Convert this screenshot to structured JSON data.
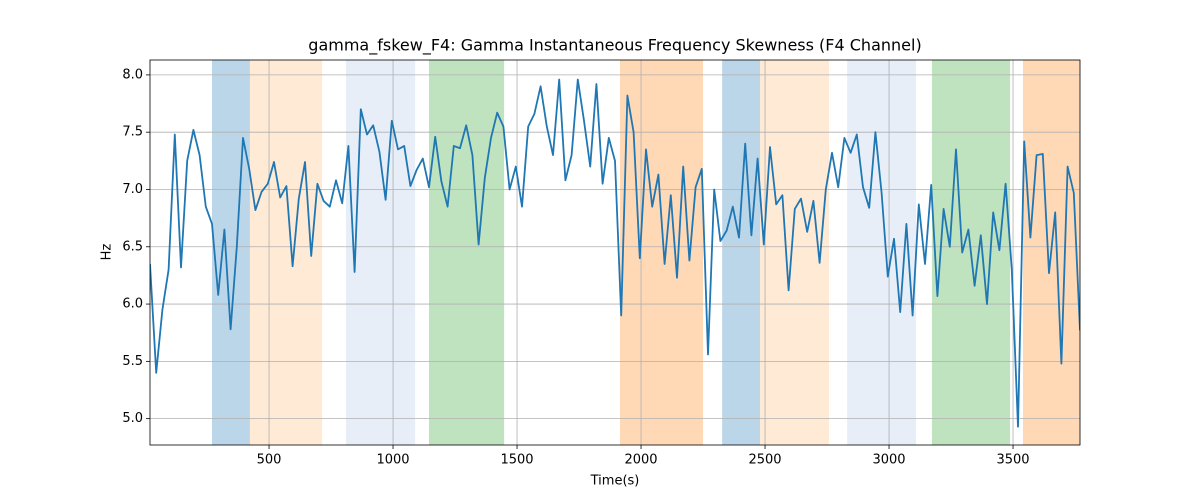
{
  "chart_data": {
    "type": "line",
    "title": "gamma_fskew_F4: Gamma Instantaneous Frequency Skewness (F4 Channel)",
    "x_label": "Time(s)",
    "y_label": "Hz",
    "x": [
      20,
      45,
      70,
      95,
      120,
      145,
      170,
      195,
      220,
      245,
      270,
      295,
      320,
      345,
      370,
      395,
      420,
      445,
      470,
      495,
      520,
      545,
      570,
      595,
      620,
      645,
      670,
      695,
      720,
      745,
      770,
      795,
      820,
      845,
      870,
      895,
      920,
      945,
      970,
      995,
      1020,
      1045,
      1070,
      1095,
      1120,
      1145,
      1170,
      1195,
      1220,
      1245,
      1270,
      1295,
      1320,
      1345,
      1370,
      1395,
      1420,
      1445,
      1470,
      1495,
      1520,
      1545,
      1570,
      1595,
      1620,
      1645,
      1670,
      1695,
      1720,
      1745,
      1770,
      1795,
      1820,
      1845,
      1870,
      1895,
      1920,
      1945,
      1970,
      1995,
      2020,
      2045,
      2070,
      2095,
      2120,
      2145,
      2170,
      2195,
      2220,
      2245,
      2270,
      2295,
      2320,
      2345,
      2370,
      2395,
      2420,
      2445,
      2470,
      2495,
      2520,
      2545,
      2570,
      2595,
      2620,
      2645,
      2670,
      2695,
      2720,
      2745,
      2770,
      2795,
      2820,
      2845,
      2870,
      2895,
      2920,
      2945,
      2970,
      2995,
      3020,
      3045,
      3070,
      3095,
      3120,
      3145,
      3170,
      3195,
      3220,
      3245,
      3270,
      3295,
      3320,
      3345,
      3370,
      3395,
      3420,
      3445,
      3470,
      3495,
      3520,
      3545,
      3570,
      3595,
      3620,
      3645,
      3670,
      3695,
      3720,
      3745,
      3770
    ],
    "values": [
      6.35,
      5.4,
      5.95,
      6.3,
      7.48,
      6.32,
      7.25,
      7.52,
      7.3,
      6.85,
      6.7,
      6.08,
      6.65,
      5.78,
      6.5,
      7.45,
      7.18,
      6.82,
      6.98,
      7.05,
      7.24,
      6.93,
      7.03,
      6.33,
      6.92,
      7.24,
      6.42,
      7.05,
      6.9,
      6.85,
      7.08,
      6.88,
      7.38,
      6.28,
      7.7,
      7.48,
      7.56,
      7.33,
      6.91,
      7.6,
      7.35,
      7.38,
      7.03,
      7.17,
      7.27,
      7.02,
      7.46,
      7.07,
      6.85,
      7.38,
      7.36,
      7.56,
      7.3,
      6.52,
      7.1,
      7.45,
      7.67,
      7.55,
      7.0,
      7.2,
      6.85,
      7.55,
      7.66,
      7.9,
      7.55,
      7.3,
      7.96,
      7.08,
      7.3,
      7.96,
      7.6,
      7.2,
      7.92,
      7.05,
      7.45,
      7.25,
      5.9,
      7.82,
      7.5,
      6.4,
      7.35,
      6.85,
      7.13,
      6.35,
      6.95,
      6.23,
      7.2,
      6.38,
      7.02,
      7.18,
      5.56,
      7.0,
      6.55,
      6.64,
      6.85,
      6.58,
      7.4,
      6.6,
      7.27,
      6.52,
      7.37,
      6.87,
      6.95,
      6.12,
      6.83,
      6.92,
      6.63,
      6.9,
      6.36,
      7.0,
      7.32,
      7.02,
      7.45,
      7.32,
      7.48,
      7.02,
      6.84,
      7.5,
      6.97,
      6.24,
      6.57,
      5.93,
      6.7,
      5.9,
      6.87,
      6.35,
      7.04,
      6.07,
      6.83,
      6.5,
      7.35,
      6.45,
      6.65,
      6.16,
      6.6,
      6.0,
      6.8,
      6.47,
      7.05,
      6.3,
      4.93,
      7.42,
      6.58,
      7.3,
      7.31,
      6.27,
      6.8,
      5.48,
      7.2,
      6.97,
      5.77
    ],
    "color": "#1f77b4",
    "spans": [
      {
        "x0": 270,
        "x1": 423,
        "color": "#1f77b4",
        "alpha": 0.3
      },
      {
        "x0": 423,
        "x1": 714,
        "color": "#ffbb78",
        "alpha": 0.3
      },
      {
        "x0": 810,
        "x1": 1089,
        "color": "#aec7e8",
        "alpha": 0.3
      },
      {
        "x0": 1145,
        "x1": 1448,
        "color": "#2ca02c",
        "alpha": 0.3
      },
      {
        "x0": 1915,
        "x1": 2250,
        "color": "#ff7f0e",
        "alpha": 0.3
      },
      {
        "x0": 2327,
        "x1": 2480,
        "color": "#1f77b4",
        "alpha": 0.3
      },
      {
        "x0": 2480,
        "x1": 2758,
        "color": "#ffbb78",
        "alpha": 0.3
      },
      {
        "x0": 2831,
        "x1": 3109,
        "color": "#aec7e8",
        "alpha": 0.3
      },
      {
        "x0": 3173,
        "x1": 3488,
        "color": "#2ca02c",
        "alpha": 0.3
      },
      {
        "x0": 3540,
        "x1": 3770,
        "color": "#ff7f0e",
        "alpha": 0.3
      }
    ],
    "xlim": [
      20,
      3770
    ],
    "ylim": [
      4.77,
      8.13
    ],
    "xticks": [
      500,
      1000,
      1500,
      2000,
      2500,
      3000,
      3500
    ],
    "yticks": [
      {
        "value": 5,
        "label": "5.0"
      },
      {
        "value": 5.5,
        "label": "5.5"
      },
      {
        "value": 6,
        "label": "6.0"
      },
      {
        "value": 6.5,
        "label": "6.5"
      },
      {
        "value": 7,
        "label": "7.0"
      },
      {
        "value": 7.5,
        "label": "7.5"
      },
      {
        "value": 8,
        "label": "8.0"
      }
    ],
    "grid": true
  }
}
